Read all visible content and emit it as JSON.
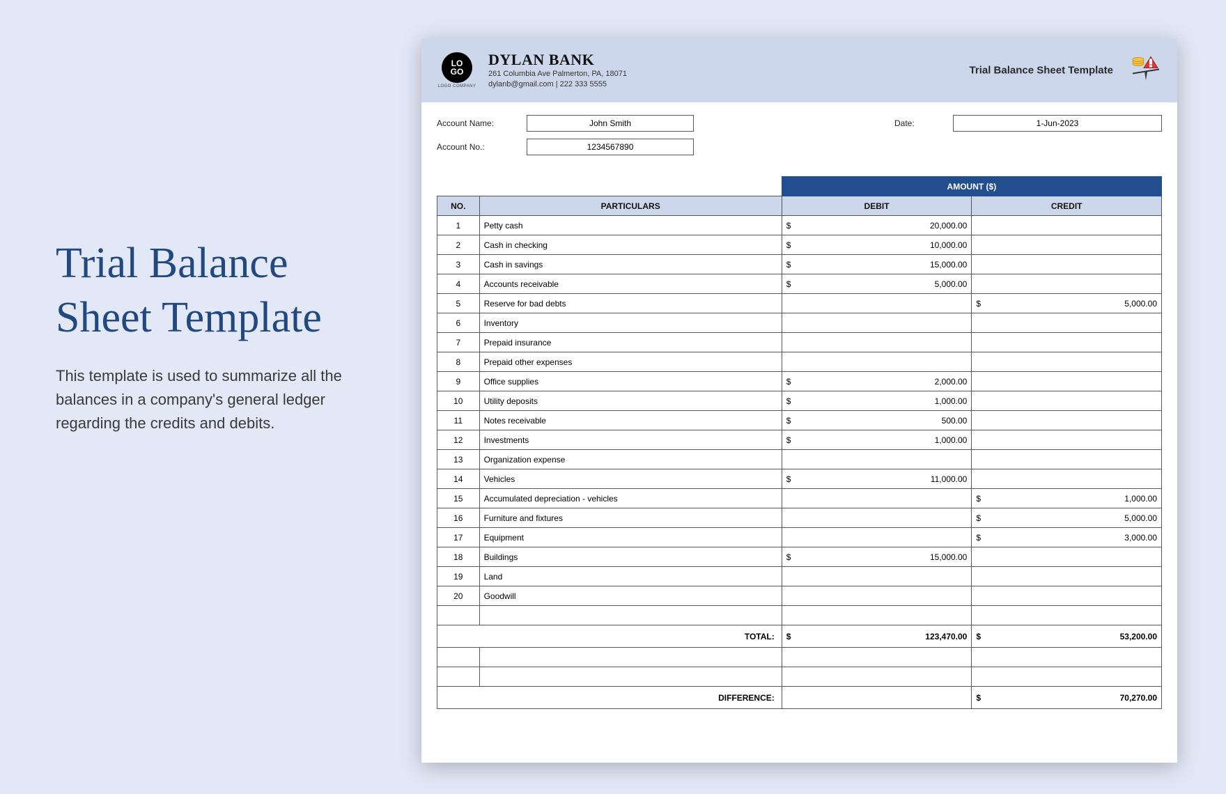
{
  "promo": {
    "title": "Trial Balance Sheet Template",
    "description": "This template is used to summarize all the balances in a company's general ledger regarding the credits and debits."
  },
  "colors": {
    "page_bg": "#e2e8f5",
    "banner_bg": "#cdd7ec",
    "header_blue": "#224d8f",
    "subheader_bg": "#cdd7ec",
    "border": "#555555",
    "promo_title": "#21487f"
  },
  "sheet": {
    "company": {
      "logo_text": "LO\nGO",
      "logo_sub": "LOGO COMPANY",
      "name": "DYLAN BANK",
      "address": "261 Columbia Ave Palmerton, PA, 18071",
      "contact": "dylanb@gmail.com | 222 333 5555"
    },
    "banner_title": "Trial Balance Sheet Template",
    "meta": {
      "account_name_label": "Account Name:",
      "account_name": "John Smith",
      "date_label": "Date:",
      "date": "1-Jun-2023",
      "account_no_label": "Account No.:",
      "account_no": "1234567890"
    },
    "table": {
      "amount_header": "AMOUNT ($)",
      "col_no": "NO.",
      "col_part": "PARTICULARS",
      "col_debit": "DEBIT",
      "col_credit": "CREDIT",
      "rows": [
        {
          "no": "1",
          "p": "Petty cash",
          "d": "20,000.00",
          "c": ""
        },
        {
          "no": "2",
          "p": "Cash in checking",
          "d": "10,000.00",
          "c": ""
        },
        {
          "no": "3",
          "p": "Cash in savings",
          "d": "15,000.00",
          "c": ""
        },
        {
          "no": "4",
          "p": "Accounts receivable",
          "d": "5,000.00",
          "c": ""
        },
        {
          "no": "5",
          "p": "Reserve for bad debts",
          "d": "",
          "c": "5,000.00"
        },
        {
          "no": "6",
          "p": "Inventory",
          "d": "",
          "c": ""
        },
        {
          "no": "7",
          "p": "Prepaid insurance",
          "d": "",
          "c": ""
        },
        {
          "no": "8",
          "p": "Prepaid other expenses",
          "d": "",
          "c": ""
        },
        {
          "no": "9",
          "p": "Office supplies",
          "d": "2,000.00",
          "c": ""
        },
        {
          "no": "10",
          "p": "Utility deposits",
          "d": "1,000.00",
          "c": ""
        },
        {
          "no": "11",
          "p": "Notes receivable",
          "d": "500.00",
          "c": ""
        },
        {
          "no": "12",
          "p": "Investments",
          "d": "1,000.00",
          "c": ""
        },
        {
          "no": "13",
          "p": "Organization expense",
          "d": "",
          "c": ""
        },
        {
          "no": "14",
          "p": "Vehicles",
          "d": "11,000.00",
          "c": ""
        },
        {
          "no": "15",
          "p": "Accumulated depreciation - vehicles",
          "d": "",
          "c": "1,000.00"
        },
        {
          "no": "16",
          "p": "Furniture and fixtures",
          "d": "",
          "c": "5,000.00"
        },
        {
          "no": "17",
          "p": "Equipment",
          "d": "",
          "c": "3,000.00"
        },
        {
          "no": "18",
          "p": "Buildings",
          "d": "15,000.00",
          "c": ""
        },
        {
          "no": "19",
          "p": "Land",
          "d": "",
          "c": ""
        },
        {
          "no": "20",
          "p": "Goodwill",
          "d": "",
          "c": ""
        }
      ],
      "total_label": "TOTAL:",
      "total_debit": "123,470.00",
      "total_credit": "53,200.00",
      "diff_label": "DIFFERENCE:",
      "diff_value": "70,270.00"
    }
  }
}
